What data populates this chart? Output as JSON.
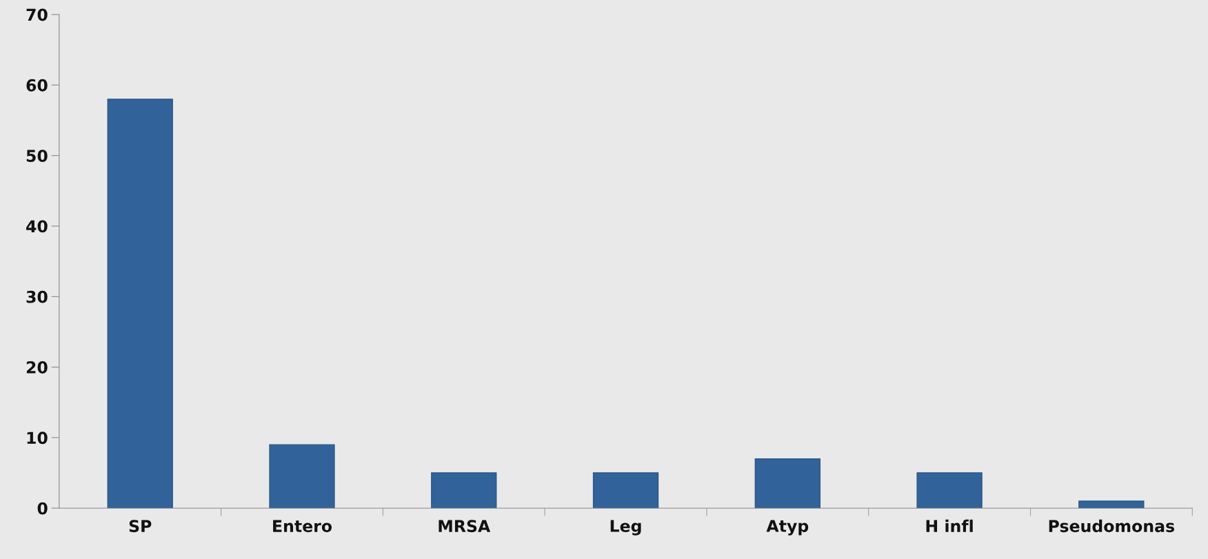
{
  "chart_data": {
    "type": "bar",
    "categories": [
      "SP",
      "Entero",
      "MRSA",
      "Leg",
      "Atyp",
      "H infl",
      "Pseudomonas"
    ],
    "values": [
      58,
      9,
      5,
      5,
      7,
      5,
      1
    ],
    "color": "#31639a",
    "ylim": [
      0,
      70
    ],
    "yticks": [
      0,
      10,
      20,
      30,
      40,
      50,
      60,
      70
    ],
    "grid": false
  }
}
